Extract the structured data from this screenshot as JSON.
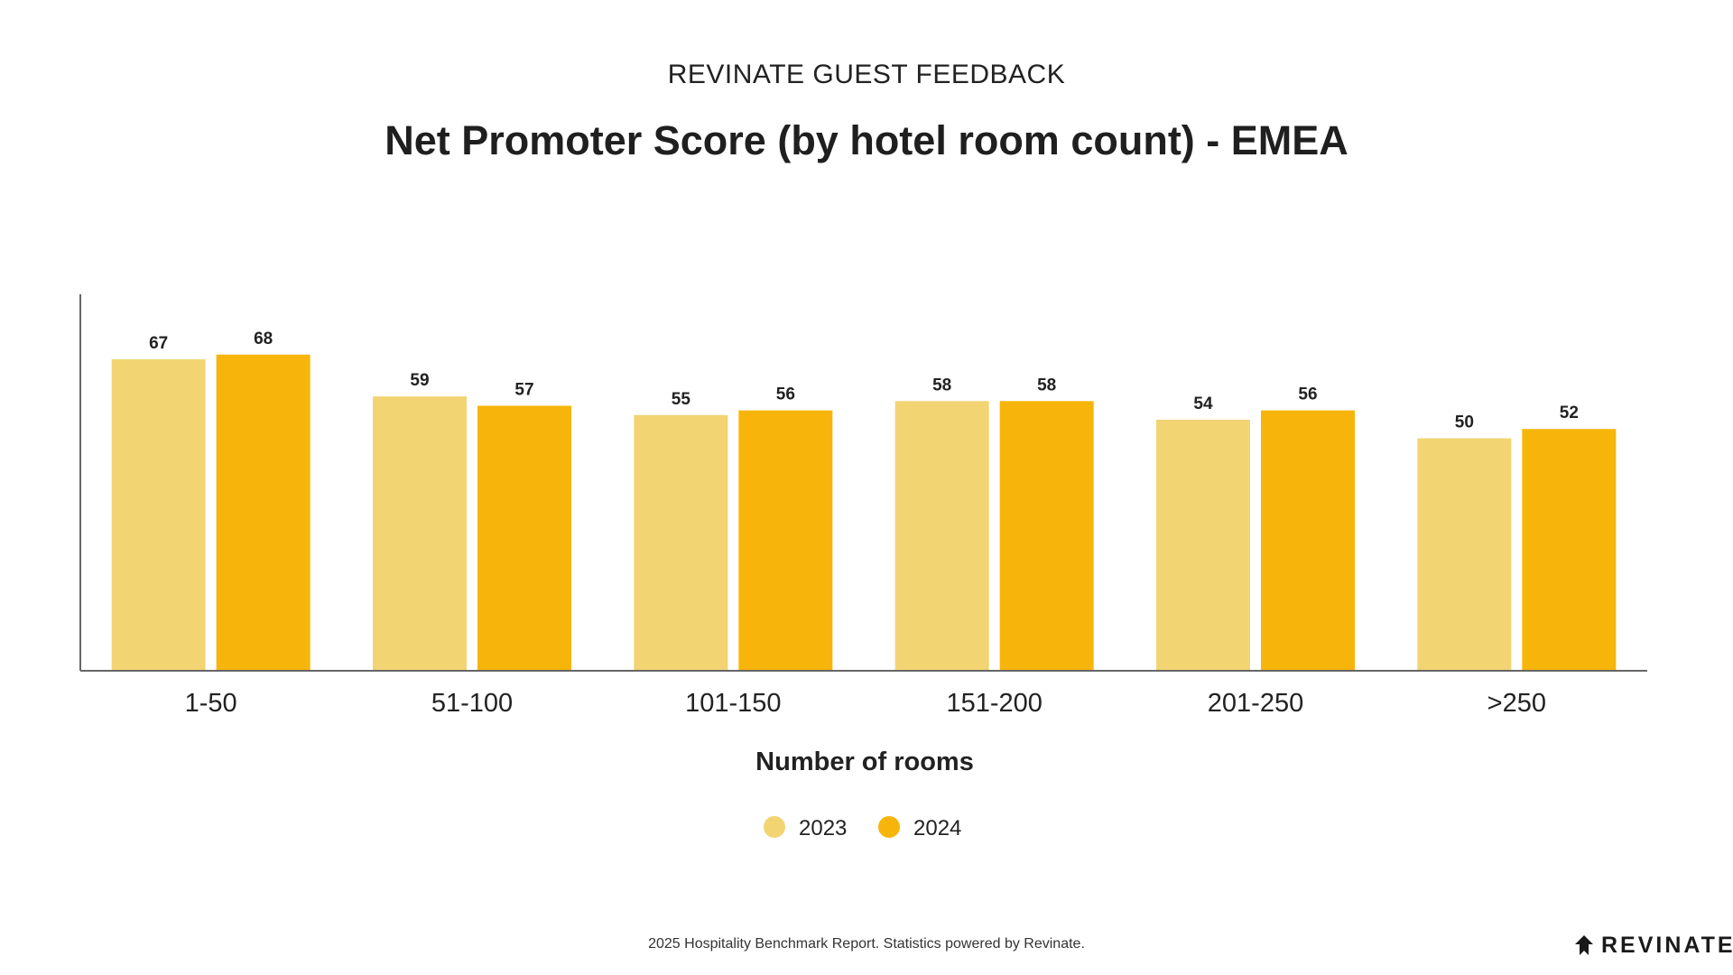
{
  "header": {
    "kicker": "REVINATE GUEST FEEDBACK",
    "title": "Net Promoter Score (by hotel room count) - EMEA"
  },
  "chart_data": {
    "type": "bar",
    "title": "Net Promoter Score (by hotel room count) - EMEA",
    "xlabel": "Number of rooms",
    "ylabel": "",
    "categories": [
      "1-50",
      "51-100",
      "101-150",
      "151-200",
      "201-250",
      ">250"
    ],
    "series": [
      {
        "name": "2023",
        "values": [
          67,
          59,
          55,
          58,
          54,
          50
        ],
        "color": "#F2D472"
      },
      {
        "name": "2024",
        "values": [
          68,
          57,
          56,
          58,
          56,
          52
        ],
        "color": "#F7B50B"
      }
    ],
    "ylim": [
      0,
      80
    ],
    "grid": false,
    "legend": "bottom-center",
    "data_labels": true
  },
  "footer": {
    "note": "2025 Hospitality Benchmark Report. Statistics powered by Revinate."
  },
  "brand": {
    "logo_text": "REVINATE",
    "logo_icon": "revinate-mark-icon",
    "text_color": "#1a1a1a"
  }
}
